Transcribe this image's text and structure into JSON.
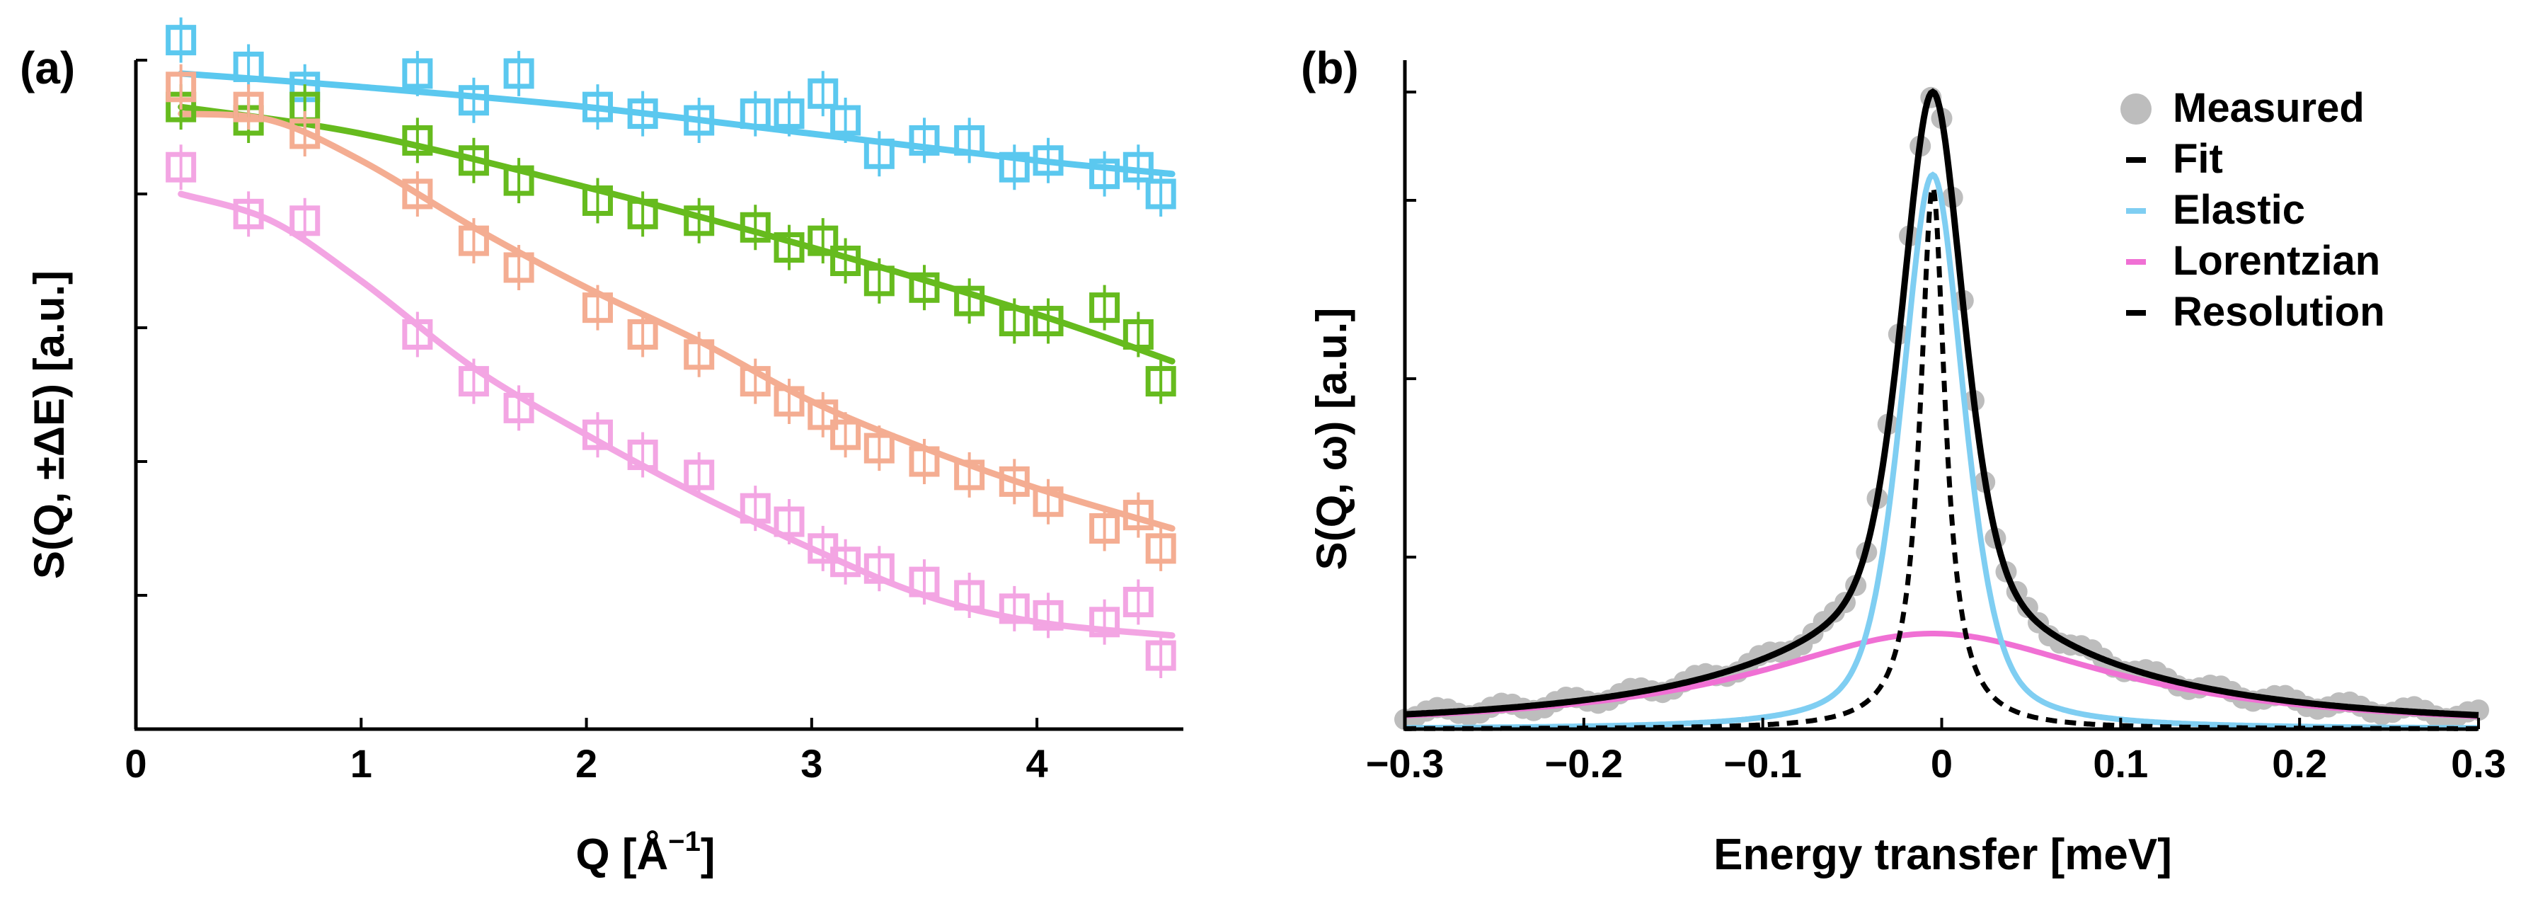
{
  "chart_data": [
    {
      "panel_label": "(a)",
      "type": "scatter",
      "xlabel": "Q [Å",
      "xlabel_sup": "−1",
      "xlabel_end": "]",
      "ylabel": "S(Q, ±ΔE) [a.u.]",
      "xlim": [
        0,
        4.65
      ],
      "ylim": [
        0,
        1
      ],
      "x_ticks": [
        0,
        1,
        2,
        3,
        4
      ],
      "x_tick_labels": [
        "0",
        "1",
        "2",
        "3",
        "4"
      ],
      "y_ticks": [
        0.2,
        0.4,
        0.6,
        0.8,
        1.0
      ],
      "grid": false,
      "series": [
        {
          "color": "#5bc8ef",
          "marker": "open-square",
          "x": [
            0.2,
            0.5,
            0.75,
            1.25,
            1.5,
            1.7,
            2.05,
            2.25,
            2.5,
            2.75,
            2.9,
            3.05,
            3.15,
            3.3,
            3.5,
            3.7,
            3.9,
            4.05,
            4.3,
            4.45,
            4.55
          ],
          "y": [
            1.03,
            0.99,
            0.96,
            0.98,
            0.94,
            0.98,
            0.93,
            0.92,
            0.91,
            0.92,
            0.92,
            0.95,
            0.91,
            0.86,
            0.88,
            0.88,
            0.84,
            0.85,
            0.83,
            0.84,
            0.8
          ],
          "fit_x": [
            0.2,
            1.0,
            2.0,
            3.0,
            4.0,
            4.6
          ],
          "fit_y": [
            0.98,
            0.96,
            0.93,
            0.89,
            0.85,
            0.83
          ]
        },
        {
          "color": "#66bb1e",
          "marker": "open-square",
          "x": [
            0.2,
            0.5,
            0.75,
            1.25,
            1.5,
            1.7,
            2.05,
            2.25,
            2.5,
            2.75,
            2.9,
            3.05,
            3.15,
            3.3,
            3.5,
            3.7,
            3.9,
            4.05,
            4.3,
            4.45,
            4.55
          ],
          "y": [
            0.93,
            0.91,
            0.93,
            0.88,
            0.85,
            0.82,
            0.79,
            0.77,
            0.76,
            0.75,
            0.72,
            0.73,
            0.7,
            0.67,
            0.66,
            0.64,
            0.61,
            0.61,
            0.63,
            0.59,
            0.52
          ],
          "fit_x": [
            0.2,
            1.0,
            2.0,
            3.0,
            4.0,
            4.6
          ],
          "fit_y": [
            0.93,
            0.89,
            0.81,
            0.72,
            0.62,
            0.55
          ]
        },
        {
          "color": "#f4ad92",
          "marker": "open-square",
          "x": [
            0.2,
            0.5,
            0.75,
            1.25,
            1.5,
            1.7,
            2.05,
            2.25,
            2.5,
            2.75,
            2.9,
            3.05,
            3.15,
            3.3,
            3.5,
            3.7,
            3.9,
            4.05,
            4.3,
            4.45,
            4.55
          ],
          "y": [
            0.96,
            0.93,
            0.89,
            0.8,
            0.73,
            0.69,
            0.63,
            0.59,
            0.56,
            0.52,
            0.49,
            0.47,
            0.44,
            0.42,
            0.4,
            0.38,
            0.37,
            0.34,
            0.3,
            0.32,
            0.27
          ],
          "fit_x": [
            0.2,
            0.6,
            1.0,
            1.5,
            2.0,
            2.5,
            3.0,
            3.5,
            4.0,
            4.6
          ],
          "fit_y": [
            0.92,
            0.91,
            0.85,
            0.75,
            0.66,
            0.58,
            0.49,
            0.42,
            0.36,
            0.3
          ]
        },
        {
          "color": "#f3a5e3",
          "marker": "open-square",
          "x": [
            0.2,
            0.5,
            0.75,
            1.25,
            1.5,
            1.7,
            2.05,
            2.25,
            2.5,
            2.75,
            2.9,
            3.05,
            3.15,
            3.3,
            3.5,
            3.7,
            3.9,
            4.05,
            4.3,
            4.45,
            4.55
          ],
          "y": [
            0.84,
            0.77,
            0.76,
            0.59,
            0.52,
            0.48,
            0.44,
            0.41,
            0.38,
            0.33,
            0.31,
            0.27,
            0.25,
            0.24,
            0.22,
            0.2,
            0.18,
            0.17,
            0.16,
            0.19,
            0.11
          ],
          "fit_x": [
            0.2,
            0.6,
            1.0,
            1.5,
            2.0,
            2.5,
            3.0,
            3.5,
            4.0,
            4.6
          ],
          "fit_y": [
            0.8,
            0.76,
            0.67,
            0.54,
            0.44,
            0.35,
            0.27,
            0.2,
            0.16,
            0.14
          ]
        }
      ]
    },
    {
      "panel_label": "(b)",
      "type": "line",
      "xlabel": "Energy transfer [meV]",
      "ylabel": "S(Q, ω) [a.u.]",
      "xlim": [
        -0.3,
        0.3
      ],
      "ylim": [
        0,
        1.05
      ],
      "x_ticks": [
        -0.3,
        -0.2,
        -0.1,
        0,
        0.1,
        0.2,
        0.3
      ],
      "x_tick_labels": [
        "−0.3",
        "−0.2",
        "−0.1",
        "0",
        "0.1",
        "0.2",
        "0.3"
      ],
      "y_ticks": [
        0.27,
        0.55,
        0.83,
        1.0
      ],
      "grid": false,
      "legend": {
        "position": "top-right",
        "entries": [
          {
            "label": "Measured",
            "style": "circle",
            "color": "#bdbdbd"
          },
          {
            "label": "Fit",
            "style": "solid",
            "color": "#000000"
          },
          {
            "label": "Elastic",
            "style": "solid",
            "color": "#7fcef2"
          },
          {
            "label": "Lorentzian",
            "style": "solid",
            "color": "#f070d4"
          },
          {
            "label": "Resolution",
            "style": "dashed",
            "color": "#000000"
          }
        ]
      },
      "peak_center": -0.005,
      "resolution_hwhm": 0.0085,
      "lorentzian_hwhm": 0.12,
      "elastic_sigma": 0.018,
      "amplitudes": {
        "fit": 1.0,
        "elastic": 0.87,
        "lorentzian": 0.15,
        "resolution": 0.85
      }
    }
  ]
}
